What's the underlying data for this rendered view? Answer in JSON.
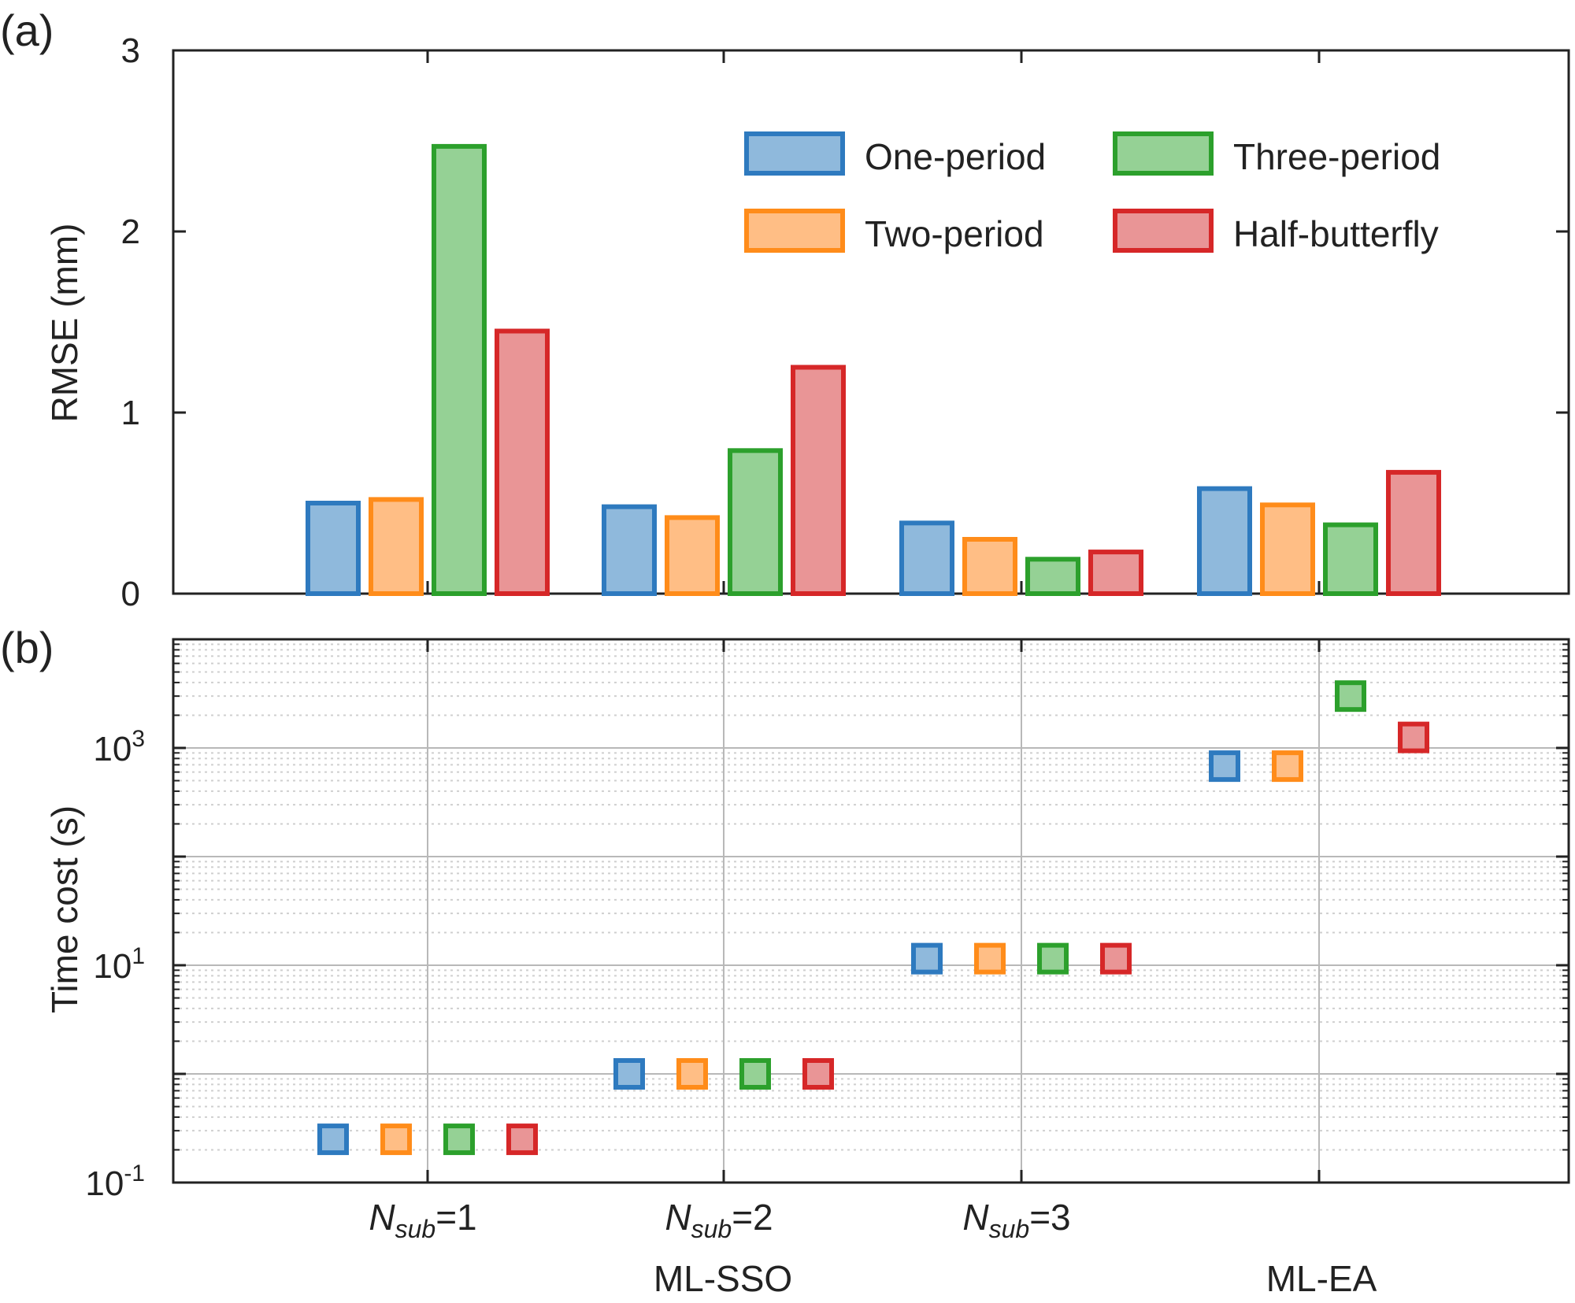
{
  "colors": {
    "one": {
      "edge": "#2e7abf",
      "fill": "#8fb9dc"
    },
    "two": {
      "edge": "#ff8c1a",
      "fill": "#ffbe85"
    },
    "three": {
      "edge": "#2ca02c",
      "fill": "#95d195"
    },
    "half": {
      "edge": "#d62728",
      "fill": "#e99596"
    },
    "axis": "#222222",
    "grid_major": "#b8b8b8",
    "grid_minor": "#cfcfcf"
  },
  "panel_a": {
    "label": "(a)",
    "ylabel": "RMSE (mm)",
    "ytick_labels": [
      "0",
      "1",
      "2",
      "3"
    ]
  },
  "panel_b": {
    "label": "(b)",
    "ylabel": "Time cost (s)",
    "ytick_labels": [
      {
        "base": "10",
        "exp": "-1"
      },
      {
        "base": "10",
        "exp": "1"
      },
      {
        "base": "10",
        "exp": "3"
      }
    ]
  },
  "x_axis": {
    "group_labels": [
      {
        "italic": "N",
        "sub": "sub",
        "rest": "=1"
      },
      {
        "italic": "N",
        "sub": "sub",
        "rest": "=2"
      },
      {
        "italic": "N",
        "sub": "sub",
        "rest": "=3"
      },
      {
        "italic": "",
        "sub": "",
        "rest": ""
      }
    ],
    "method_labels": [
      "ML-SSO",
      "ML-EA"
    ]
  },
  "legend": {
    "placement": "top-right",
    "entries": [
      "One-period",
      "Two-period",
      "Three-period",
      "Half-butterfly"
    ]
  },
  "chart_data": [
    {
      "type": "bar",
      "categories": [
        "Nsub=1",
        "Nsub=2",
        "Nsub=3",
        "ML-EA"
      ],
      "ylabel": "RMSE (mm)",
      "ylim": [
        0,
        3
      ],
      "grid": false,
      "series": [
        {
          "name": "One-period",
          "values": [
            0.5,
            0.48,
            0.39,
            0.58
          ]
        },
        {
          "name": "Two-period",
          "values": [
            0.52,
            0.42,
            0.3,
            0.49
          ]
        },
        {
          "name": "Three-period",
          "values": [
            2.47,
            0.79,
            0.19,
            0.38
          ]
        },
        {
          "name": "Half-butterfly",
          "values": [
            1.45,
            1.25,
            0.23,
            0.67
          ]
        }
      ]
    },
    {
      "type": "scatter",
      "categories": [
        "Nsub=1",
        "Nsub=2",
        "Nsub=3",
        "ML-EA"
      ],
      "ylabel": "Time cost (s)",
      "yscale": "log",
      "ylim": [
        0.1,
        10000
      ],
      "grid": true,
      "series": [
        {
          "name": "One-period",
          "values": [
            0.25,
            1.0,
            11.5,
            680
          ]
        },
        {
          "name": "Two-period",
          "values": [
            0.25,
            1.0,
            11.5,
            680
          ]
        },
        {
          "name": "Three-period",
          "values": [
            0.25,
            1.0,
            11.5,
            3000
          ]
        },
        {
          "name": "Half-butterfly",
          "values": [
            0.25,
            1.0,
            11.5,
            1250
          ]
        }
      ]
    }
  ]
}
